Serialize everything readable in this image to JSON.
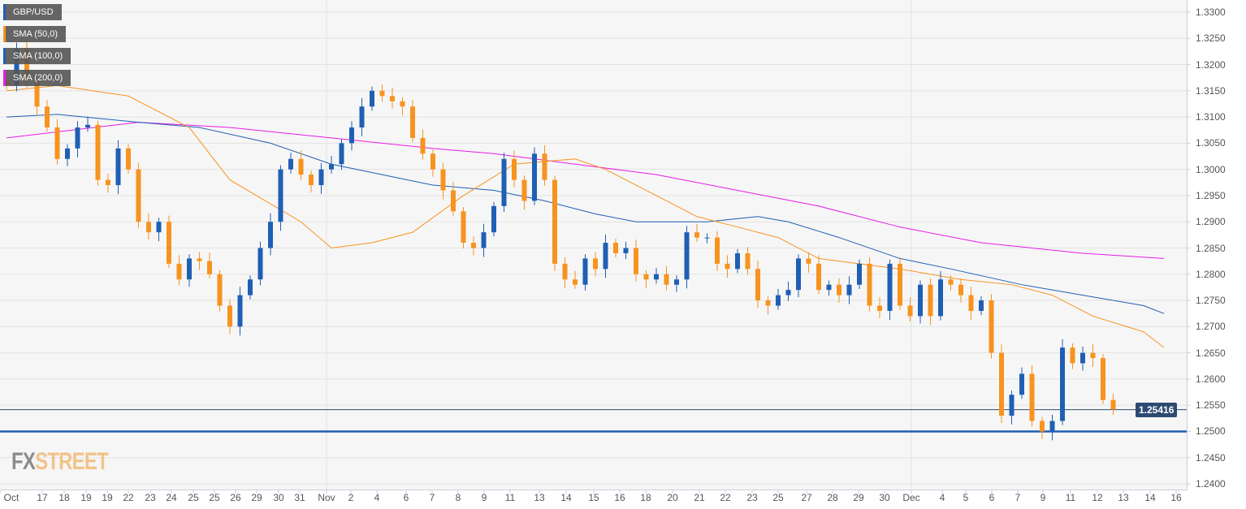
{
  "legend": [
    {
      "label": "GBP/USD",
      "color": "#1f5fb4"
    },
    {
      "label": "SMA (50,0)",
      "color": "#f7931e"
    },
    {
      "label": "SMA (100,0)",
      "color": "#1f5fb4"
    },
    {
      "label": "SMA (200,0)",
      "color": "#e81be8"
    }
  ],
  "logo": {
    "fx": "FX",
    "street": "STREET"
  },
  "current_price": "1.25416",
  "chart_data": {
    "type": "candlestick",
    "title": "GBP/USD",
    "ylim": [
      1.24,
      1.33
    ],
    "yticks": [
      "1.3300",
      "1.3250",
      "1.3200",
      "1.3150",
      "1.3100",
      "1.3050",
      "1.3000",
      "1.2950",
      "1.2900",
      "1.2850",
      "1.2800",
      "1.2750",
      "1.2700",
      "1.2650",
      "1.2600",
      "1.2550",
      "1.2500",
      "1.2450",
      "1.2400"
    ],
    "xticks": [
      "Oct",
      "17",
      "18",
      "19",
      "19",
      "22",
      "23",
      "24",
      "25",
      "25",
      "26",
      "29",
      "30",
      "31",
      "Nov",
      "2",
      "4",
      "6",
      "7",
      "8",
      "9",
      "11",
      "13",
      "14",
      "15",
      "16",
      "18",
      "20",
      "21",
      "22",
      "23",
      "25",
      "27",
      "28",
      "29",
      "30",
      "Dec",
      "4",
      "5",
      "6",
      "7",
      "9",
      "11",
      "12",
      "13",
      "14",
      "16"
    ],
    "closes": [
      1.316,
      1.323,
      1.317,
      1.312,
      1.308,
      1.302,
      1.304,
      1.308,
      1.3085,
      1.298,
      1.297,
      1.304,
      1.3,
      1.29,
      1.288,
      1.29,
      1.282,
      1.279,
      1.283,
      1.2825,
      1.28,
      1.274,
      1.27,
      1.276,
      1.279,
      1.285,
      1.29,
      1.3,
      1.302,
      1.299,
      1.297,
      1.3,
      1.301,
      1.305,
      1.308,
      1.312,
      1.315,
      1.314,
      1.313,
      1.312,
      1.306,
      1.303,
      1.3,
      1.296,
      1.292,
      1.286,
      1.285,
      1.288,
      1.293,
      1.302,
      1.298,
      1.294,
      1.303,
      1.298,
      1.282,
      1.279,
      1.278,
      1.283,
      1.281,
      1.286,
      1.284,
      1.285,
      1.28,
      1.279,
      1.28,
      1.278,
      1.279,
      1.288,
      1.287,
      1.287,
      1.282,
      1.281,
      1.284,
      1.281,
      1.275,
      1.274,
      1.276,
      1.277,
      1.283,
      1.282,
      1.277,
      1.278,
      1.276,
      1.278,
      1.282,
      1.274,
      1.273,
      1.282,
      1.274,
      1.272,
      1.278,
      1.272,
      1.279,
      1.278,
      1.276,
      1.273,
      1.275,
      1.265,
      1.253,
      1.257,
      1.261,
      1.252,
      1.25,
      1.252,
      1.266,
      1.263,
      1.265,
      1.264,
      1.256,
      1.2542
    ],
    "sma50": [
      [
        0,
        1.315
      ],
      [
        5,
        1.316
      ],
      [
        12,
        1.314
      ],
      [
        18,
        1.308
      ],
      [
        22,
        1.298
      ],
      [
        29,
        1.29
      ],
      [
        32,
        1.285
      ],
      [
        36,
        1.286
      ],
      [
        40,
        1.288
      ],
      [
        45,
        1.295
      ],
      [
        50,
        1.301
      ],
      [
        56,
        1.302
      ],
      [
        59,
        1.3
      ],
      [
        63,
        1.296
      ],
      [
        68,
        1.291
      ],
      [
        72,
        1.289
      ],
      [
        76,
        1.287
      ],
      [
        80,
        1.283
      ],
      [
        88,
        1.281
      ],
      [
        94,
        1.279
      ],
      [
        99,
        1.278
      ],
      [
        103,
        1.276
      ],
      [
        107,
        1.272
      ],
      [
        112,
        1.269
      ],
      [
        114,
        1.266
      ]
    ],
    "sma100": [
      [
        0,
        1.31
      ],
      [
        5,
        1.3105
      ],
      [
        13,
        1.309
      ],
      [
        19,
        1.308
      ],
      [
        26,
        1.305
      ],
      [
        32,
        1.301
      ],
      [
        37,
        1.299
      ],
      [
        42,
        1.297
      ],
      [
        48,
        1.296
      ],
      [
        53,
        1.294
      ],
      [
        58,
        1.2915
      ],
      [
        62,
        1.29
      ],
      [
        69,
        1.29
      ],
      [
        74,
        1.291
      ],
      [
        77,
        1.29
      ],
      [
        82,
        1.287
      ],
      [
        88,
        1.283
      ],
      [
        93,
        1.281
      ],
      [
        100,
        1.278
      ],
      [
        106,
        1.276
      ],
      [
        112,
        1.274
      ],
      [
        114,
        1.2725
      ]
    ],
    "sma200": [
      [
        0,
        1.306
      ],
      [
        13,
        1.309
      ],
      [
        22,
        1.308
      ],
      [
        32,
        1.306
      ],
      [
        42,
        1.304
      ],
      [
        48,
        1.303
      ],
      [
        56,
        1.301
      ],
      [
        64,
        1.299
      ],
      [
        72,
        1.296
      ],
      [
        80,
        1.293
      ],
      [
        88,
        1.289
      ],
      [
        96,
        1.286
      ],
      [
        106,
        1.284
      ],
      [
        114,
        1.283
      ]
    ],
    "hlines": [
      {
        "value": 1.25416,
        "color": "#2d4a72"
      },
      {
        "value": 1.25,
        "color": "#1f5fb4"
      }
    ],
    "up_color": "#1f5fb4",
    "down_color": "#f7931e"
  }
}
